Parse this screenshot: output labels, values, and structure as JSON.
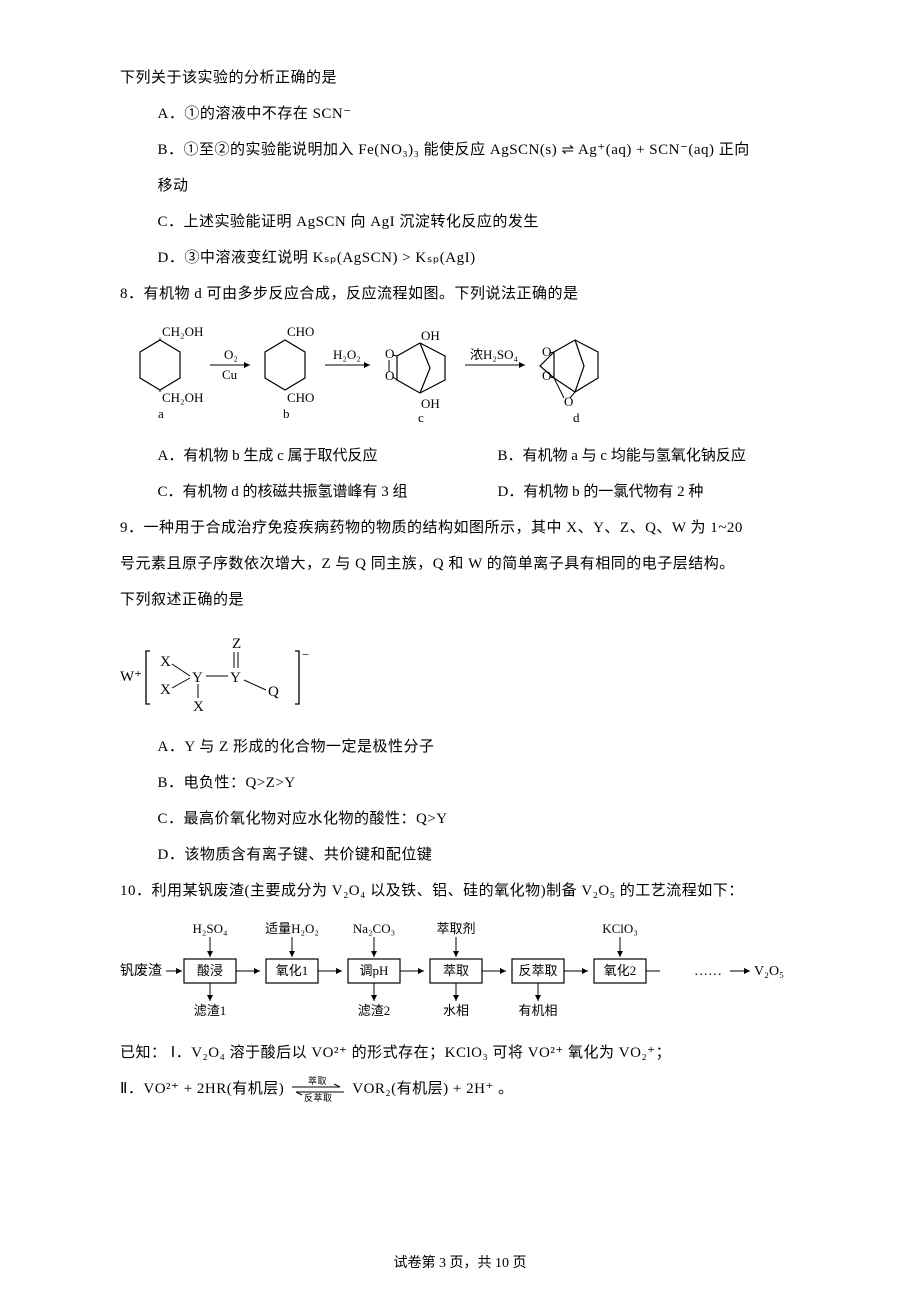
{
  "intro7": "下列关于该实验的分析正确的是",
  "q7": {
    "A": "A．①的溶液中不存在 SCN⁻",
    "B_pre": "B．①至②的实验能说明加入 Fe(NO₃)₃ 能使反应 AgSCN(s) ⇌ Ag⁺(aq) + SCN⁻(aq) 正向",
    "B_post": "移动",
    "C": "C．上述实验能证明 AgSCN 向 AgI 沉淀转化反应的发生",
    "D": "D．③中溶液变红说明 Kₛₚ(AgSCN) > Kₛₚ(AgI)"
  },
  "q8": {
    "stem": "8．有机物 d 可由多步反应合成，反应流程如图。下列说法正确的是",
    "A": "A．有机物 b 生成 c 属于取代反应",
    "B": "B．有机物 a 与 c 均能与氢氧化钠反应",
    "C": "C．有机物 d 的核磁共振氢谱峰有 3 组",
    "D": "D．有机物 b 的一氯代物有 2 种",
    "diagram": {
      "labels": [
        "a",
        "b",
        "c",
        "d"
      ],
      "a_groups": [
        "CH₂OH",
        "CH₂OH"
      ],
      "b_groups": [
        "CHO",
        "CHO"
      ],
      "arrow1_top": "O₂",
      "arrow1_bottom": "Cu",
      "arrow2": "H₂O₂",
      "arrow3": "浓H₂SO₄",
      "c_oh": "OH"
    }
  },
  "q9": {
    "stem1": "9．一种用于合成治疗免疫疾病药物的物质的结构如图所示，其中 X、Y、Z、Q、W 为 1~20",
    "stem2": "号元素且原子序数依次增大，Z 与 Q 同主族，Q 和 W 的简单离子具有相同的电子层结构。",
    "stem3": "下列叙述正确的是",
    "A": "A．Y 与 Z 形成的化合物一定是极性分子",
    "B": "B．电负性：Q>Z>Y",
    "C": "C．最高价氧化物对应水化物的酸性：Q>Y",
    "D": "D．该物质含有离子键、共价键和配位键",
    "diagram": {
      "W": "W⁺",
      "X": "X",
      "Y": "Y",
      "Z": "Z",
      "Q": "Q"
    }
  },
  "q10": {
    "stem": "10．利用某钒废渣(主要成分为 V₂O₄ 以及铁、铝、硅的氧化物)制备 V₂O₅ 的工艺流程如下：",
    "flow": {
      "inputs_top": [
        "H₂SO₄",
        "适量H₂O₂",
        "Na₂CO₃",
        "萃取剂",
        "",
        "KClO₃"
      ],
      "start": "钒废渣",
      "boxes": [
        "酸浸",
        "氧化1",
        "调pH",
        "萃取",
        "反萃取",
        "氧化2"
      ],
      "end": "V₂O₅",
      "dots": "……",
      "outputs_bottom": [
        "滤渣1",
        "",
        "滤渣2",
        "水相",
        "有机相",
        ""
      ]
    },
    "known_label": "已知：",
    "known1": "Ⅰ．V₂O₄ 溶于酸后以 VO²⁺ 的形式存在；KClO₃ 可将 VO²⁺ 氧化为 VO₂⁺；",
    "known2_pre": "Ⅱ．VO²⁺ + 2HR(有机层) ",
    "known2_top": "萃取",
    "known2_bot": "反萃取",
    "known2_post": " VOR₂(有机层) + 2H⁺ 。"
  },
  "footer": "试卷第 3 页，共 10 页",
  "colors": {
    "text": "#000000",
    "bg": "#ffffff",
    "stroke": "#000000"
  },
  "fontsizes": {
    "body": 15,
    "footer": 14,
    "svg_label": 13
  }
}
